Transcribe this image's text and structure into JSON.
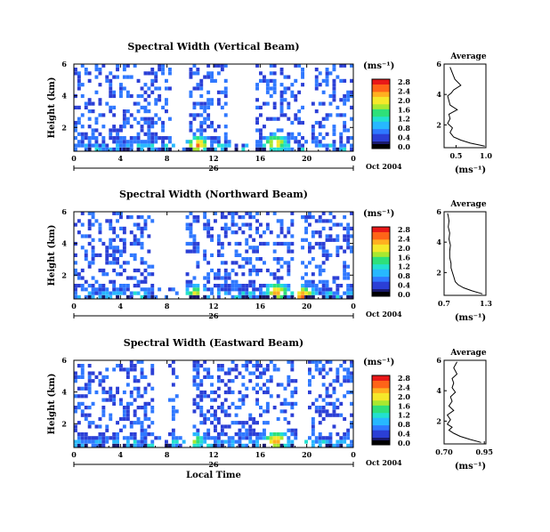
{
  "chart_data": [
    {
      "type": "heatmap",
      "title": "Spectral Width (Vertical Beam)",
      "ylabel": "Height (km)",
      "xlim": [
        0,
        24
      ],
      "ylim": [
        0.5,
        6
      ],
      "x_ticks": [
        "0",
        "4",
        "8",
        "12",
        "16",
        "20",
        "0"
      ],
      "y_ticks": [
        "2",
        "4",
        "6"
      ],
      "date_day": "26",
      "date_label": "Oct 2004",
      "colorbar": {
        "unit": "(ms⁻¹)",
        "ticks": [
          "0.0",
          "0.4",
          "0.8",
          "1.2",
          "1.6",
          "2.0",
          "2.4",
          "2.8"
        ]
      },
      "hot_spots": [
        {
          "x": 10.5,
          "y": 0.8,
          "v": 2.6
        },
        {
          "x": 17.2,
          "y": 0.9,
          "v": 2.4
        }
      ],
      "average": {
        "title": "Average",
        "xlabel": "(ms⁻¹)",
        "xlim": [
          0.3,
          1.0
        ],
        "x_ticks": [
          "0.5",
          "1.0"
        ],
        "y_ticks": [
          "2",
          "4",
          "6"
        ],
        "profile_x": [
          0.98,
          0.74,
          0.58,
          0.46,
          0.4,
          0.44,
          0.36,
          0.4,
          0.38,
          0.52,
          0.4,
          0.38,
          0.36,
          0.42,
          0.46,
          0.58,
          0.48,
          0.44,
          0.4
        ],
        "profile_y": [
          0.6,
          0.8,
          1.0,
          1.2,
          1.5,
          1.8,
          2.1,
          2.4,
          2.7,
          3.0,
          3.3,
          3.6,
          3.9,
          4.1,
          4.3,
          4.6,
          5.0,
          5.4,
          5.8
        ]
      }
    },
    {
      "type": "heatmap",
      "title": "Spectral Width (Northward Beam)",
      "ylabel": "Height (km)",
      "xlim": [
        0,
        24
      ],
      "ylim": [
        0.5,
        6
      ],
      "x_ticks": [
        "0",
        "4",
        "8",
        "12",
        "16",
        "20",
        "0"
      ],
      "y_ticks": [
        "2",
        "4",
        "6"
      ],
      "date_day": "26",
      "date_label": "Oct 2004",
      "colorbar": {
        "unit": "(ms⁻¹)",
        "ticks": [
          "0.0",
          "0.4",
          "0.8",
          "1.2",
          "1.6",
          "2.0",
          "2.4",
          "2.8"
        ]
      },
      "hot_spots": [
        {
          "x": 10.3,
          "y": 0.7,
          "v": 2.0
        },
        {
          "x": 17.3,
          "y": 0.8,
          "v": 2.6
        },
        {
          "x": 19.5,
          "y": 0.6,
          "v": 2.8
        }
      ],
      "average": {
        "title": "Average",
        "xlabel": "(ms⁻¹)",
        "xlim": [
          0.7,
          1.3
        ],
        "x_ticks": [
          "0.7",
          "1.3"
        ],
        "y_ticks": [
          "2",
          "4",
          "6"
        ],
        "profile_x": [
          1.25,
          1.1,
          0.98,
          0.9,
          0.86,
          0.84,
          0.82,
          0.8,
          0.8,
          0.78,
          0.78,
          0.79,
          0.77,
          0.78,
          0.76,
          0.77,
          0.76,
          0.75
        ],
        "profile_y": [
          0.6,
          0.8,
          1.0,
          1.2,
          1.4,
          1.7,
          2.0,
          2.3,
          2.6,
          3.0,
          3.4,
          3.8,
          4.2,
          4.6,
          5.0,
          5.4,
          5.7,
          5.9
        ]
      }
    },
    {
      "type": "heatmap",
      "title": "Spectral Width (Eastward Beam)",
      "ylabel": "Height (km)",
      "xlim": [
        0,
        24
      ],
      "ylim": [
        0.5,
        6
      ],
      "x_ticks": [
        "0",
        "4",
        "8",
        "12",
        "16",
        "20",
        "0"
      ],
      "y_ticks": [
        "2",
        "4",
        "6"
      ],
      "date_day": "26",
      "date_label": "Oct 2004",
      "xlabel": "Local Time",
      "colorbar": {
        "unit": "(ms⁻¹)",
        "ticks": [
          "0.0",
          "0.4",
          "0.8",
          "1.2",
          "1.6",
          "2.0",
          "2.4",
          "2.8"
        ]
      },
      "hot_spots": [
        {
          "x": 10.2,
          "y": 0.8,
          "v": 1.8
        },
        {
          "x": 17.2,
          "y": 0.8,
          "v": 2.6
        }
      ],
      "average": {
        "title": "Average",
        "xlabel": "(ms⁻¹)",
        "xlim": [
          0.7,
          0.96
        ],
        "x_ticks": [
          "0.70",
          "0.95"
        ],
        "y_ticks": [
          "2",
          "4",
          "6"
        ],
        "profile_x": [
          0.93,
          0.86,
          0.8,
          0.76,
          0.73,
          0.75,
          0.72,
          0.74,
          0.72,
          0.76,
          0.73,
          0.75,
          0.74,
          0.77,
          0.75,
          0.76,
          0.75,
          0.78,
          0.76,
          0.78
        ],
        "profile_y": [
          0.6,
          0.8,
          1.0,
          1.2,
          1.4,
          1.6,
          1.8,
          2.1,
          2.4,
          2.7,
          3.0,
          3.3,
          3.6,
          3.9,
          4.2,
          4.5,
          4.8,
          5.1,
          5.5,
          5.9
        ]
      }
    }
  ],
  "palette": [
    "#1a1a6e",
    "#2b3fd6",
    "#2f78ff",
    "#27b8ff",
    "#22e0d0",
    "#2ee07a",
    "#a8e830",
    "#f5e82a",
    "#ffb020",
    "#ff6418",
    "#e81818"
  ]
}
